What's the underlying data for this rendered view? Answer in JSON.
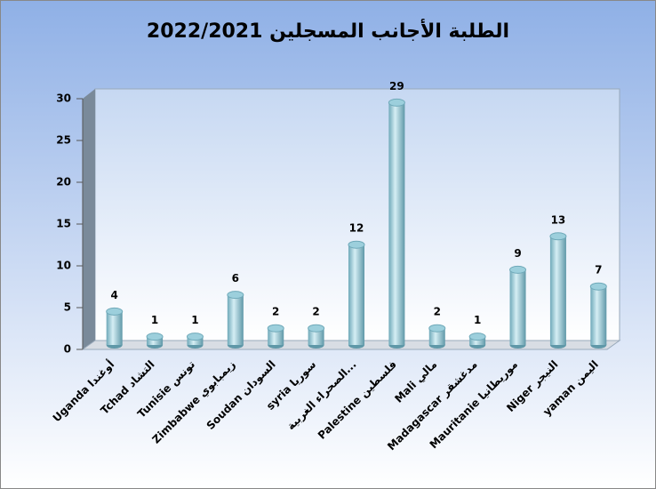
{
  "chart_data": {
    "type": "bar",
    "title": "الطلبة الأجانب المسجلين 2022/2021",
    "categories": [
      "Uganda أوغندا",
      "Tchad التشاد",
      "Tunisie تونس",
      "Zimbabwe زيمبابوي",
      "Soudan السودان",
      "syria سوريا",
      "الصحراء الغربية...",
      "Palestine فلسطين",
      "Mali مالي",
      "Madagascar مدغشقر",
      "Mauritanie موريطانيا",
      "Niger النيجر",
      "yaman اليمن"
    ],
    "values": [
      4,
      1,
      1,
      6,
      2,
      2,
      12,
      29,
      2,
      1,
      9,
      13,
      7
    ],
    "color": "#9ccfdc",
    "ylim": [
      0,
      30
    ],
    "yticks": [
      0,
      5,
      10,
      15,
      20,
      25,
      30
    ],
    "grid": false
  }
}
